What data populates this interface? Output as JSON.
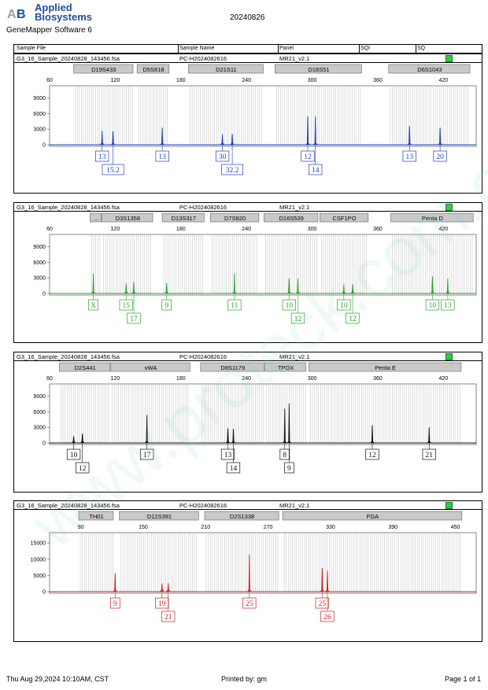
{
  "header": {
    "brand_line1": "Applied",
    "brand_line2": "Biosystems",
    "software": "GeneMapper Software 6",
    "run_date": "20240826",
    "columns": [
      "Sample File",
      "Sample Name",
      "Panel",
      "SQI",
      "SQ"
    ]
  },
  "footer": {
    "printed_time": "Thu Aug 29,2024 10:10AM, CST",
    "printed_by": "Printed by: gm",
    "page": "Page 1 of 1"
  },
  "watermark": "www.proteck.com.cn",
  "colors": {
    "blue": "#1f3fbf",
    "green": "#2ca02c",
    "black": "#111111",
    "red": "#cc1f1f",
    "sq": "#2ecc40"
  },
  "chart_data": [
    {
      "type": "line",
      "sample_file": "G3_16_Sample_20240828_143456.fsa",
      "sample_name": "PC-H2024082616",
      "panel": "MR21_v2.1",
      "color": "#1f3fbf",
      "xlim": [
        60,
        450
      ],
      "ylim": [
        0,
        10000
      ],
      "xticks": [
        60,
        120,
        180,
        240,
        300,
        360,
        420
      ],
      "yticks": [
        0,
        3000,
        6000,
        9000
      ],
      "markers": [
        {
          "name": "D19S433",
          "start": 82,
          "end": 137
        },
        {
          "name": "D5S818",
          "start": 140,
          "end": 170
        },
        {
          "name": "D21S11",
          "start": 187,
          "end": 256
        },
        {
          "name": "D18S51",
          "start": 266,
          "end": 346
        },
        {
          "name": "D6S1043",
          "start": 370,
          "end": 445
        }
      ],
      "peaks": [
        {
          "x": 108,
          "h": 2700
        },
        {
          "x": 118,
          "h": 2600
        },
        {
          "x": 163,
          "h": 3300
        },
        {
          "x": 218,
          "h": 2000
        },
        {
          "x": 227,
          "h": 2100
        },
        {
          "x": 296,
          "h": 5500
        },
        {
          "x": 303,
          "h": 5500
        },
        {
          "x": 389,
          "h": 3600
        },
        {
          "x": 417,
          "h": 3300
        }
      ],
      "labels": [
        {
          "text": "13",
          "x": 108,
          "row": 1
        },
        {
          "text": "15.2",
          "x": 118,
          "row": 2
        },
        {
          "text": "13",
          "x": 163,
          "row": 1
        },
        {
          "text": "30",
          "x": 218,
          "row": 1
        },
        {
          "text": "32.2",
          "x": 227,
          "row": 2
        },
        {
          "text": "12",
          "x": 296,
          "row": 1
        },
        {
          "text": "14",
          "x": 303,
          "row": 2
        },
        {
          "text": "13",
          "x": 389,
          "row": 1
        },
        {
          "text": "20",
          "x": 417,
          "row": 1
        }
      ]
    },
    {
      "type": "line",
      "sample_file": "G3_16_Sample_20240828_143456.fsa",
      "sample_name": "PC-H2024082616",
      "panel": "MR21_v2.1",
      "color": "#2ca02c",
      "xlim": [
        60,
        450
      ],
      "ylim": [
        0,
        10000
      ],
      "xticks": [
        60,
        120,
        180,
        240,
        300,
        360,
        420
      ],
      "yticks": [
        0,
        3000,
        6000,
        9000
      ],
      "markers": [
        {
          "name": "...",
          "start": 97,
          "end": 108
        },
        {
          "name": "D3S1358",
          "start": 108,
          "end": 155
        },
        {
          "name": "D13S317",
          "start": 163,
          "end": 202
        },
        {
          "name": "D7S820",
          "start": 207,
          "end": 252
        },
        {
          "name": "D16S539",
          "start": 256,
          "end": 306
        },
        {
          "name": "CSF1PO",
          "start": 307,
          "end": 352
        },
        {
          "name": "Penta D",
          "start": 372,
          "end": 448
        }
      ],
      "peaks": [
        {
          "x": 100,
          "h": 3800
        },
        {
          "x": 130,
          "h": 2000
        },
        {
          "x": 137,
          "h": 2200
        },
        {
          "x": 167,
          "h": 2000
        },
        {
          "x": 229,
          "h": 3900
        },
        {
          "x": 279,
          "h": 2900
        },
        {
          "x": 287,
          "h": 2900
        },
        {
          "x": 329,
          "h": 1800
        },
        {
          "x": 337,
          "h": 1800
        },
        {
          "x": 410,
          "h": 3300
        },
        {
          "x": 424,
          "h": 2900
        }
      ],
      "labels": [
        {
          "text": "X",
          "x": 100,
          "row": 1
        },
        {
          "text": "15",
          "x": 130,
          "row": 1
        },
        {
          "text": "17",
          "x": 137,
          "row": 2
        },
        {
          "text": "9",
          "x": 167,
          "row": 1
        },
        {
          "text": "11",
          "x": 229,
          "row": 1
        },
        {
          "text": "10",
          "x": 279,
          "row": 1
        },
        {
          "text": "12",
          "x": 287,
          "row": 2
        },
        {
          "text": "10",
          "x": 329,
          "row": 1
        },
        {
          "text": "12",
          "x": 337,
          "row": 2
        },
        {
          "text": "10",
          "x": 410,
          "row": 1
        },
        {
          "text": "13",
          "x": 424,
          "row": 1
        }
      ]
    },
    {
      "type": "line",
      "sample_file": "G3_16_Sample_20240828_143456.fsa",
      "sample_name": "PC-H2024082616",
      "panel": "MR21_v2.1",
      "color": "#111111",
      "xlim": [
        60,
        450
      ],
      "ylim": [
        0,
        10000
      ],
      "xticks": [
        60,
        120,
        180,
        240,
        300,
        360,
        420
      ],
      "yticks": [
        0,
        3000,
        6000,
        9000
      ],
      "markers": [
        {
          "name": "D2S441",
          "start": 69,
          "end": 116
        },
        {
          "name": "vWA",
          "start": 116,
          "end": 189
        },
        {
          "name": "D8S1179",
          "start": 198,
          "end": 257
        },
        {
          "name": "TPOX",
          "start": 257,
          "end": 295
        },
        {
          "name": "Penta E",
          "start": 297,
          "end": 437
        }
      ],
      "peaks": [
        {
          "x": 82,
          "h": 1300
        },
        {
          "x": 90,
          "h": 1800
        },
        {
          "x": 149,
          "h": 5400
        },
        {
          "x": 223,
          "h": 2800
        },
        {
          "x": 228,
          "h": 2700
        },
        {
          "x": 275,
          "h": 6600
        },
        {
          "x": 279,
          "h": 7600
        },
        {
          "x": 355,
          "h": 3400
        },
        {
          "x": 407,
          "h": 3000
        }
      ],
      "labels": [
        {
          "text": "10",
          "x": 82,
          "row": 1
        },
        {
          "text": "12",
          "x": 90,
          "row": 2
        },
        {
          "text": "17",
          "x": 149,
          "row": 1
        },
        {
          "text": "13",
          "x": 223,
          "row": 1
        },
        {
          "text": "14",
          "x": 228,
          "row": 2
        },
        {
          "text": "8",
          "x": 275,
          "row": 1
        },
        {
          "text": "9",
          "x": 279,
          "row": 2
        },
        {
          "text": "12",
          "x": 355,
          "row": 1
        },
        {
          "text": "21",
          "x": 407,
          "row": 1
        }
      ]
    },
    {
      "type": "line",
      "sample_file": "G3_16_Sample_20240828_143456.fsa",
      "sample_name": "PC-H2024082616",
      "panel": "MR21_v2.1",
      "color": "#cc1f1f",
      "xlim": [
        60,
        470
      ],
      "ylim": [
        0,
        16000
      ],
      "xticks": [
        90,
        150,
        210,
        270,
        330,
        390,
        450
      ],
      "yticks": [
        0,
        5000,
        10000,
        15000
      ],
      "markers": [
        {
          "name": "TH01",
          "start": 88,
          "end": 122
        },
        {
          "name": "D12S391",
          "start": 127,
          "end": 204
        },
        {
          "name": "D2S1338",
          "start": 209,
          "end": 281
        },
        {
          "name": "FGA",
          "start": 284,
          "end": 457
        }
      ],
      "peaks": [
        {
          "x": 123,
          "h": 5700
        },
        {
          "x": 168,
          "h": 2500
        },
        {
          "x": 174,
          "h": 2600
        },
        {
          "x": 252,
          "h": 11500
        },
        {
          "x": 322,
          "h": 7300
        },
        {
          "x": 327,
          "h": 6500
        }
      ],
      "labels": [
        {
          "text": "9",
          "x": 123,
          "row": 1
        },
        {
          "text": "19",
          "x": 168,
          "row": 1
        },
        {
          "text": "21",
          "x": 174,
          "row": 2
        },
        {
          "text": "25",
          "x": 252,
          "row": 1
        },
        {
          "text": "25",
          "x": 322,
          "row": 1
        },
        {
          "text": "26",
          "x": 327,
          "row": 2
        }
      ]
    }
  ]
}
